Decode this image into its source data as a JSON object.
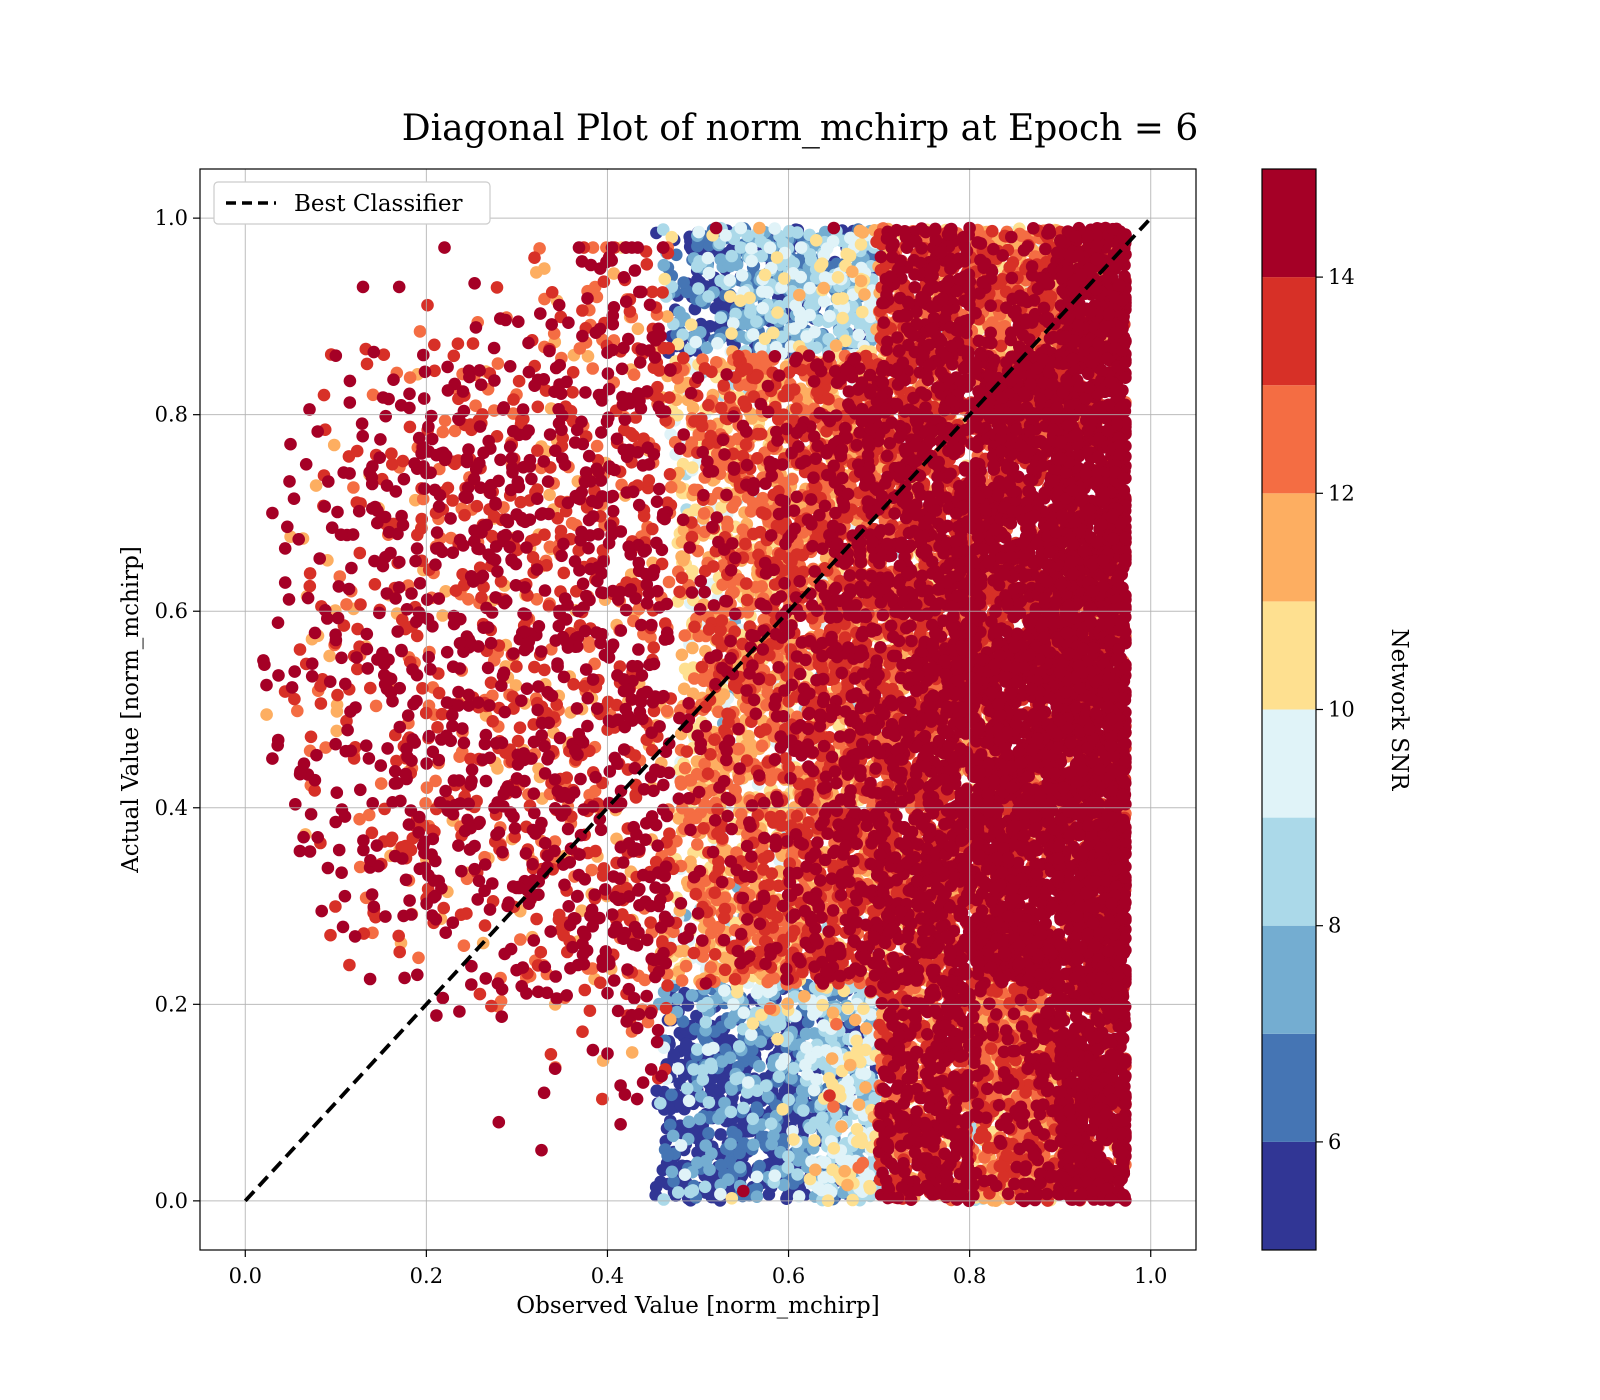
{
  "chart_data": {
    "type": "scatter",
    "title": "Diagonal Plot of norm_mchirp at Epoch = 6",
    "xlabel": "Observed Value [norm_mchirp]",
    "ylabel": "Actual Value [norm_mchirp]",
    "xlim": [
      -0.05,
      1.05
    ],
    "ylim": [
      -0.05,
      1.05
    ],
    "xticks": [
      "0.0",
      "0.2",
      "0.4",
      "0.6",
      "0.8",
      "1.0"
    ],
    "yticks": [
      "0.0",
      "0.2",
      "0.4",
      "0.6",
      "0.8",
      "1.0"
    ],
    "grid": true,
    "legend": {
      "position": "upper-left",
      "entries": [
        "Best Classifier"
      ]
    },
    "reference_line": {
      "name": "Best Classifier",
      "x": [
        0.0,
        1.0
      ],
      "y": [
        0.0,
        1.0
      ],
      "style": "dashed",
      "color": "#000000"
    },
    "colorbar": {
      "label": "Network SNR",
      "range": [
        5,
        15
      ],
      "ticks": [
        "6",
        "8",
        "10",
        "12",
        "14"
      ],
      "tick_values": [
        6,
        8,
        10,
        12,
        14
      ],
      "levels": [
        5,
        6,
        7,
        8,
        9,
        10,
        11,
        12,
        13,
        14,
        15
      ],
      "colors": [
        "#313695",
        "#4575b4",
        "#74add1",
        "#abd9e9",
        "#e0f3f8",
        "#fee090",
        "#fdae61",
        "#f46d43",
        "#d73027",
        "#a50026"
      ]
    },
    "series": [
      {
        "point_count_estimate": 30000,
        "description": "Points concentrated at observed 0.45-0.97 across actual 0-1; sparse tail at observed 0.02-0.45 for actual 0.05-0.97",
        "sample_points": [
          [
            0.02,
            0.55
          ],
          [
            0.03,
            0.7
          ],
          [
            0.03,
            0.45
          ],
          [
            0.05,
            0.77
          ],
          [
            0.1,
            0.86
          ],
          [
            0.13,
            0.93
          ],
          [
            0.17,
            0.93
          ],
          [
            0.22,
            0.97
          ],
          [
            0.08,
            0.37
          ],
          [
            0.11,
            0.31
          ],
          [
            0.19,
            0.23
          ],
          [
            0.28,
            0.08
          ],
          [
            0.33,
            0.11
          ],
          [
            0.4,
            0.15
          ],
          [
            0.42,
            0.97
          ],
          [
            0.52,
            0.99
          ],
          [
            0.65,
            0.99
          ],
          [
            0.8,
            0.99
          ],
          [
            0.95,
            0.99
          ],
          [
            0.86,
            0.0
          ],
          [
            0.55,
            0.01
          ],
          [
            0.7,
            0.05
          ],
          [
            0.9,
            0.1
          ],
          [
            0.96,
            0.5
          ],
          [
            0.97,
            0.9
          ]
        ]
      }
    ]
  }
}
